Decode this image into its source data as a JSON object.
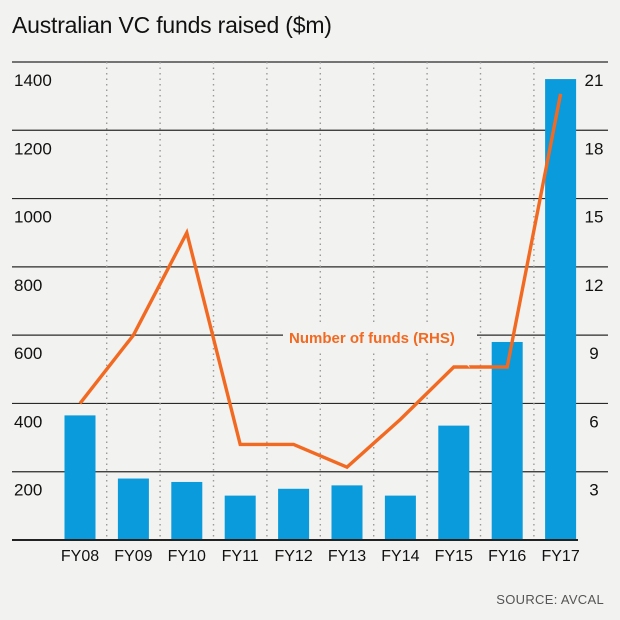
{
  "colors": {
    "bar": "#0a9bdc",
    "line": "#f26a21",
    "grid": "#9a9a9a",
    "axis": "#222222",
    "background": "#f2f2f0"
  },
  "source": "SOURCE: AVCAL",
  "chart_data": {
    "type": "bar",
    "title": "Australian VC funds raised ($m)",
    "categories": [
      "FY08",
      "FY09",
      "FY10",
      "FY11",
      "FY12",
      "FY13",
      "FY14",
      "FY15",
      "FY16",
      "FY17"
    ],
    "series": [
      {
        "values": [
          365,
          180,
          170,
          130,
          150,
          160,
          130,
          335,
          580,
          1350
        ]
      },
      {
        "name": "Number of funds (RHS)",
        "axis": "right",
        "type": "line",
        "values": [
          6,
          9,
          13.5,
          4.2,
          4.2,
          3.2,
          5.3,
          7.6,
          7.6,
          19.6
        ]
      }
    ],
    "y_left": {
      "range": [
        0,
        1400
      ],
      "ticks": [
        200,
        400,
        600,
        800,
        1000,
        1200,
        1400
      ]
    },
    "y_right": {
      "range": [
        0,
        21
      ],
      "ticks": [
        3,
        6,
        9,
        12,
        15,
        18,
        21
      ]
    },
    "annotation": "Number of funds (RHS)",
    "grid": true
  }
}
